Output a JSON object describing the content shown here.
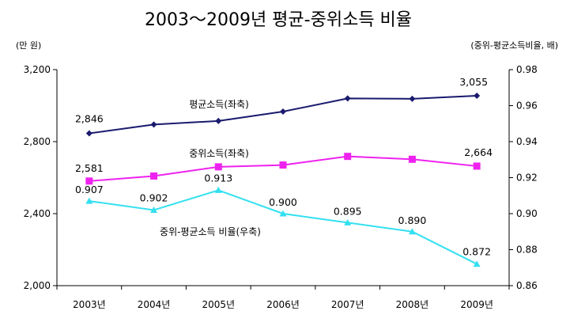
{
  "chart_data": {
    "type": "line",
    "title": "2003～2009년 평균-중위소득 비율",
    "left_axis_unit": "(만 원)",
    "right_axis_unit": "(중위-평균소득비율, 배)",
    "categories": [
      "2003년",
      "2004년",
      "2005년",
      "2006년",
      "2007년",
      "2008년",
      "2009년"
    ],
    "y_left": {
      "range": [
        2000,
        3200
      ],
      "ticks": [
        "2,000",
        "2,400",
        "2,800",
        "3,200"
      ],
      "tick_values": [
        2000,
        2400,
        2800,
        3200
      ]
    },
    "y_right": {
      "range": [
        0.86,
        0.98
      ],
      "ticks": [
        "0.86",
        "0.88",
        "0.90",
        "0.92",
        "0.94",
        "0.96",
        "0.98"
      ],
      "tick_values": [
        0.86,
        0.88,
        0.9,
        0.92,
        0.94,
        0.96,
        0.98
      ]
    },
    "grid": false,
    "series": [
      {
        "name": "평균소득(좌축)",
        "axis": "left",
        "color": "#1a1a6e",
        "marker": "diamond",
        "values": [
          2846,
          2895,
          2915,
          2967,
          3040,
          3038,
          3055
        ],
        "labels": [
          {
            "index": 0,
            "text": "2,846"
          },
          {
            "index": 6,
            "text": "3,055"
          }
        ]
      },
      {
        "name": "중위소득(좌축)",
        "axis": "left",
        "color": "#ee22ee",
        "marker": "square",
        "values": [
          2581,
          2609,
          2660,
          2670,
          2718,
          2702,
          2664
        ],
        "labels": [
          {
            "index": 0,
            "text": "2,581"
          },
          {
            "index": 6,
            "text": "2,664"
          }
        ]
      },
      {
        "name": "중위-평균소득 비율(우축)",
        "axis": "right",
        "color": "#33e0f0",
        "marker": "triangle",
        "values": [
          0.907,
          0.902,
          0.913,
          0.9,
          0.895,
          0.89,
          0.872
        ],
        "labels": [
          {
            "index": 0,
            "text": "0.907"
          },
          {
            "index": 1,
            "text": "0.902"
          },
          {
            "index": 2,
            "text": "0.913"
          },
          {
            "index": 3,
            "text": "0.900"
          },
          {
            "index": 4,
            "text": "0.895"
          },
          {
            "index": 5,
            "text": "0.890"
          },
          {
            "index": 6,
            "text": "0.872"
          }
        ]
      }
    ]
  }
}
